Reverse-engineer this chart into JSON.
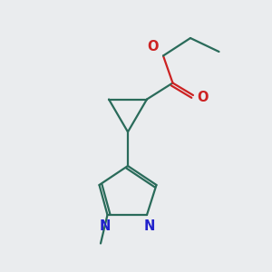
{
  "bg_color": "#eaecee",
  "bond_color": "#2a6b5a",
  "N_color": "#2222cc",
  "O_color": "#cc2222",
  "line_width": 1.6,
  "font_size_atoms": 10.5,
  "figsize": [
    3.0,
    3.0
  ],
  "dpi": 100,
  "xlim": [
    0,
    10
  ],
  "ylim": [
    0,
    10
  ]
}
